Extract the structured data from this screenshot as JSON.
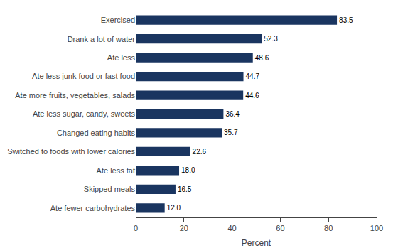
{
  "chart_data": {
    "type": "bar",
    "orientation": "horizontal",
    "categories": [
      "Ate fewer carbohydrates",
      "Skipped meals",
      "Ate less fat",
      "Switched to foods with lower calories",
      "Changed eating habits",
      "Ate less sugar, candy, sweets",
      "Ate more fruits, vegetables, salads",
      "Ate less junk food or fast food",
      "Ate less",
      "Drank a lot of water",
      "Exercised"
    ],
    "values": [
      12.0,
      16.5,
      18.0,
      22.6,
      35.7,
      36.4,
      44.6,
      44.7,
      48.6,
      52.3,
      83.5
    ],
    "value_labels": [
      "12.0",
      "16.5",
      "18.0",
      "22.6",
      "35.7",
      "36.4",
      "44.6",
      "44.7",
      "48.6",
      "52.3",
      "83.5"
    ],
    "data_labels": true,
    "color": "#1a3560",
    "xlabel": "Percent",
    "xlim": [
      0,
      100
    ],
    "xticks": [
      0,
      20,
      40,
      60,
      80,
      100
    ],
    "grid": false
  }
}
